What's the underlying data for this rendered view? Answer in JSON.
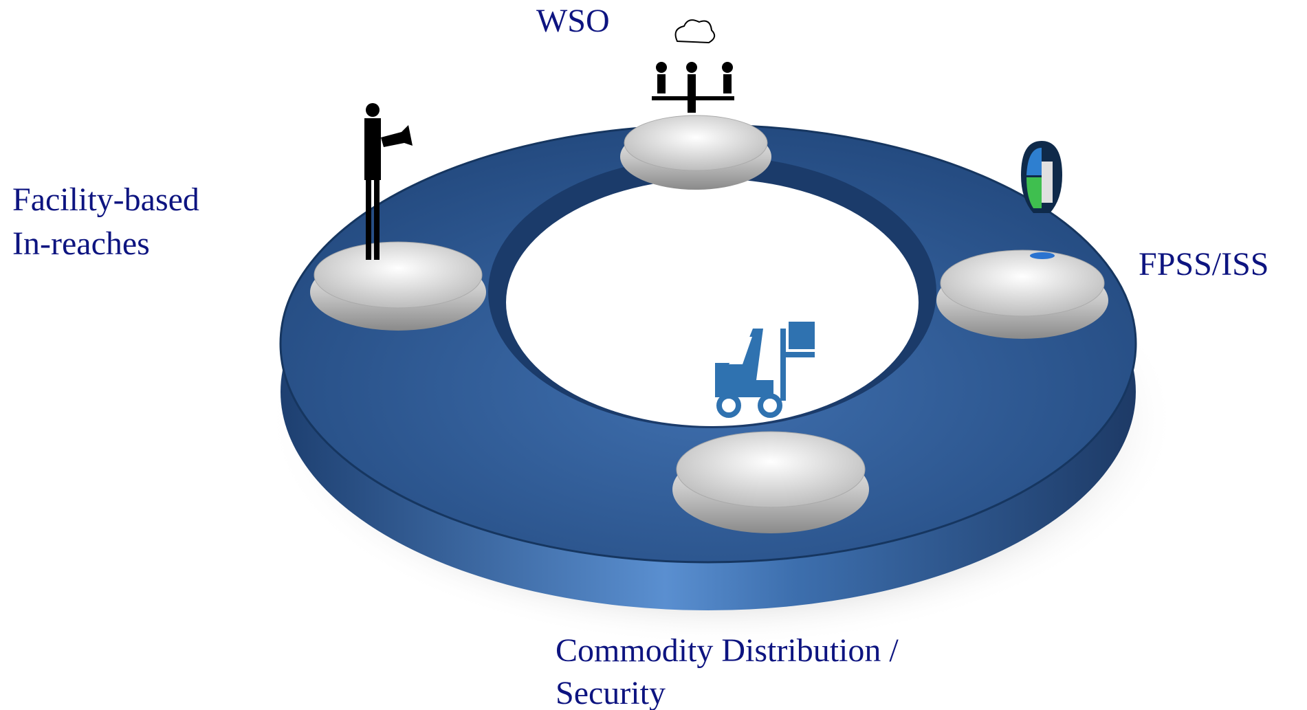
{
  "nodes": [
    {
      "lines": [
        "WSO"
      ]
    },
    {
      "lines": [
        "Facility-based",
        "In-reaches"
      ]
    },
    {
      "lines": [
        "FPSS/ISS"
      ]
    },
    {
      "lines": [
        "Commodity Distribution /",
        "Security"
      ]
    }
  ]
}
